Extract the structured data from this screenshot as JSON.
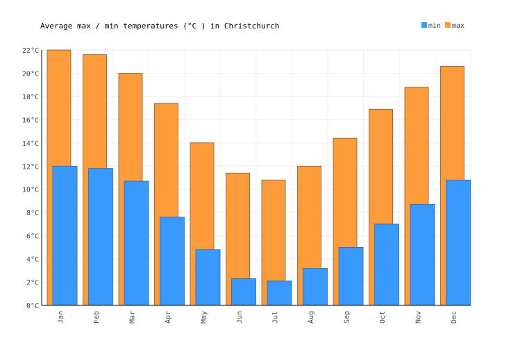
{
  "chart_data": {
    "type": "bar",
    "title": "Average max / min temperatures (°C ) in Christchurch",
    "categories": [
      "Jan",
      "Feb",
      "Mar",
      "Apr",
      "May",
      "Jun",
      "Jul",
      "Aug",
      "Sep",
      "Oct",
      "Nov",
      "Dec"
    ],
    "series": [
      {
        "name": "min",
        "color": "#3a99fd",
        "values": [
          12.0,
          11.8,
          10.7,
          7.6,
          4.8,
          2.3,
          2.1,
          3.2,
          5.0,
          7.0,
          8.7,
          10.8
        ]
      },
      {
        "name": "max",
        "color": "#fe9c3c",
        "values": [
          22.0,
          21.6,
          20.0,
          17.4,
          14.0,
          11.4,
          10.8,
          12.0,
          14.4,
          16.9,
          18.8,
          20.6
        ]
      }
    ],
    "y_ticks": [
      "0°C",
      "2°C",
      "4°C",
      "6°C",
      "8°C",
      "10°C",
      "12°C",
      "14°C",
      "16°C",
      "18°C",
      "20°C",
      "22°C"
    ],
    "ylim": [
      0,
      22
    ],
    "grid": true,
    "legend_position": "top-right"
  }
}
